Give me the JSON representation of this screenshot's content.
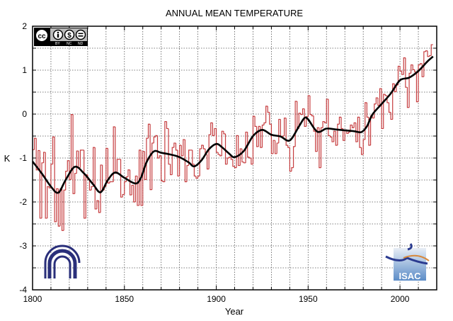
{
  "chart_data": {
    "type": "line",
    "title": "ANNUAL MEAN TEMPERATURE",
    "xlabel": "Year",
    "ylabel": "K",
    "xlim": [
      1800,
      2020
    ],
    "ylim": [
      -4,
      2
    ],
    "x_ticks": [
      1800,
      1850,
      1900,
      1950,
      2000
    ],
    "y_ticks": [
      2,
      1,
      0,
      -1,
      -2,
      -3,
      -4
    ],
    "grid": true,
    "colors": {
      "annual": "#c0282a",
      "smooth": "#000000"
    },
    "annual": {
      "start_year": 1800,
      "style": "steps",
      "values": [
        -0.81,
        -0.55,
        -1.27,
        -0.83,
        -2.37,
        -1.11,
        -0.87,
        -2.37,
        -1.65,
        -1.68,
        -1.14,
        -0.52,
        -2.45,
        -1.7,
        -2.55,
        -1.7,
        -2.65,
        -1.73,
        -1.3,
        -1.06,
        -1.49,
        -0.01,
        -1.81,
        -1.35,
        -0.84,
        -1.22,
        -0.82,
        -0.82,
        -2.37,
        -1.38,
        -1.49,
        -1.73,
        -1.65,
        -0.76,
        -2.16,
        -1.97,
        -2.24,
        -1.16,
        -1.73,
        -1.65,
        -0.78,
        -1.57,
        -1.54,
        -1.54,
        -0.29,
        -1.35,
        -1.03,
        -1.03,
        -1.89,
        -1.83,
        -1.54,
        -1.43,
        -1.27,
        -1.84,
        -1.62,
        -2.0,
        -1.41,
        -2.08,
        -0.82,
        -2.08,
        -0.85,
        -1.49,
        -0.55,
        -0.23,
        -1.72,
        -0.66,
        -0.52,
        -0.49,
        -1.0,
        -0.95,
        -1.52,
        -1.54,
        -0.17,
        -0.33,
        -1.14,
        -1.38,
        -0.76,
        -0.66,
        -0.82,
        -1.41,
        -0.71,
        -0.95,
        -0.58,
        -1.54,
        -1.17,
        -0.82,
        -0.82,
        -1.14,
        -1.41,
        -1.46,
        -1.41,
        -0.79,
        -0.71,
        -0.79,
        -0.92,
        -1.25,
        -0.47,
        -0.2,
        -0.49,
        -0.33,
        -0.87,
        -0.92,
        -0.95,
        -0.39,
        -0.45,
        -1.14,
        -1.0,
        -0.98,
        -1.03,
        -1.19,
        -1.22,
        -0.49,
        -1.17,
        -0.79,
        -1.09,
        -1.11,
        -0.41,
        -0.98,
        -1.0,
        -1.14,
        -0.05,
        -0.28,
        -0.74,
        -0.28,
        -0.76,
        -0.25,
        -0.2,
        0.18,
        0.04,
        -0.23,
        -0.9,
        -0.6,
        -0.9,
        -0.66,
        -0.12,
        -0.52,
        -0.5,
        -0.09,
        -0.71,
        -0.76,
        -1.3,
        -1.22,
        -0.74,
        0.29,
        -0.33,
        0.02,
        -0.01,
        0.12,
        -0.28,
        -0.06,
        0.42,
        -0.01,
        -0.04,
        -0.39,
        -0.85,
        -0.31,
        -1.22,
        -0.31,
        -0.17,
        -0.2,
        0.34,
        -0.49,
        -0.52,
        -0.63,
        -0.39,
        -0.71,
        -0.23,
        -0.07,
        -0.33,
        -0.6,
        -0.36,
        -0.44,
        -0.41,
        -0.25,
        -0.31,
        -0.2,
        -0.63,
        -0.07,
        -0.76,
        -0.92,
        -0.58,
        0.26,
        -0.07,
        -0.71,
        -0.04,
        -0.09,
        0.23,
        0.37,
        0.2,
        0.58,
        -0.33,
        0.45,
        0.42,
        0.26,
        0.04,
        -0.12,
        0.69,
        0.51,
        0.66,
        1.09,
        0.98,
        0.9,
        1.28,
        0.61,
        0.15,
        0.93,
        1.12,
        1.01,
        0.96,
        0.28,
        1.12,
        1.15,
        0.85,
        1.42,
        1.44,
        1.31,
        1.33,
        1.58
      ]
    },
    "smoothed": {
      "x": [
        1800,
        1805,
        1810,
        1814,
        1818,
        1823,
        1828,
        1833,
        1837,
        1841,
        1845,
        1850,
        1856,
        1859,
        1862,
        1866,
        1870,
        1875,
        1880,
        1885,
        1888,
        1892,
        1896,
        1900,
        1903,
        1907,
        1910,
        1915,
        1920,
        1925,
        1930,
        1935,
        1940,
        1945,
        1948,
        1950,
        1955,
        1960,
        1965,
        1970,
        1975,
        1979,
        1982,
        1985,
        1990,
        1995,
        2000,
        2005,
        2010,
        2015,
        2018
      ],
      "y": [
        -1.08,
        -1.35,
        -1.65,
        -1.79,
        -1.5,
        -1.2,
        -1.35,
        -1.6,
        -1.78,
        -1.5,
        -1.33,
        -1.45,
        -1.58,
        -1.45,
        -1.1,
        -0.85,
        -0.88,
        -0.92,
        -0.98,
        -1.1,
        -1.19,
        -1.05,
        -0.8,
        -0.68,
        -0.75,
        -0.9,
        -0.98,
        -0.84,
        -0.5,
        -0.36,
        -0.47,
        -0.51,
        -0.6,
        -0.28,
        -0.09,
        -0.12,
        -0.4,
        -0.33,
        -0.35,
        -0.37,
        -0.39,
        -0.41,
        -0.28,
        -0.01,
        0.23,
        0.47,
        0.77,
        0.83,
        0.98,
        1.2,
        1.31
      ]
    }
  },
  "logos": {
    "license": {
      "badge": "cc",
      "terms": [
        "BY",
        "NC",
        "ND"
      ]
    },
    "institute_left": "CNR",
    "institute_right": "ISAC"
  }
}
